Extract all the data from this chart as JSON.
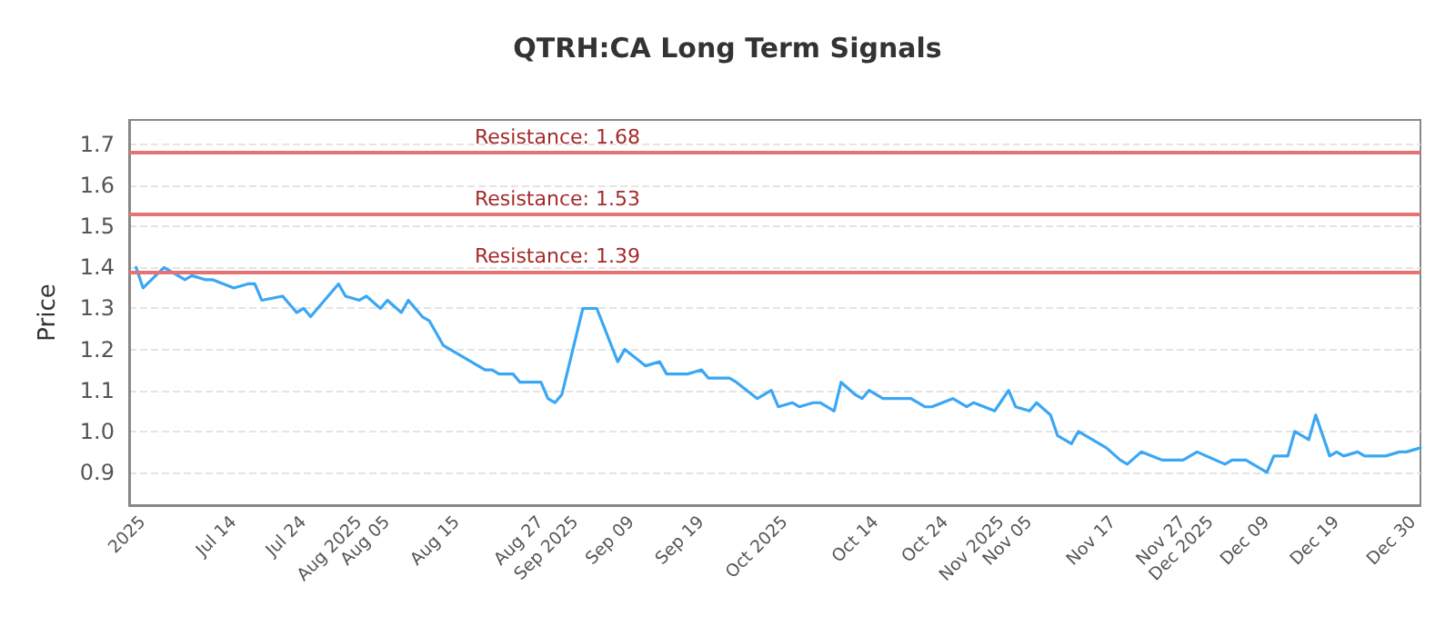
{
  "chart_data": {
    "type": "line",
    "title": "QTRH:CA Long Term Signals",
    "ylabel": "Price",
    "x": [
      "2025-06-30",
      "2025-07-01",
      "2025-07-04",
      "2025-07-05",
      "2025-07-07",
      "2025-07-08",
      "2025-07-10",
      "2025-07-11",
      "2025-07-14",
      "2025-07-16",
      "2025-07-17",
      "2025-07-18",
      "2025-07-21",
      "2025-07-22",
      "2025-07-23",
      "2025-07-24",
      "2025-07-25",
      "2025-07-29",
      "2025-07-30",
      "2025-08-01",
      "2025-08-02",
      "2025-08-04",
      "2025-08-05",
      "2025-08-07",
      "2025-08-08",
      "2025-08-10",
      "2025-08-11",
      "2025-08-13",
      "2025-08-14",
      "2025-08-16",
      "2025-08-17",
      "2025-08-19",
      "2025-08-20",
      "2025-08-21",
      "2025-08-23",
      "2025-08-24",
      "2025-08-26",
      "2025-08-27",
      "2025-08-28",
      "2025-08-29",
      "2025-08-30",
      "2025-09-01",
      "2025-09-02",
      "2025-09-04",
      "2025-09-07",
      "2025-09-08",
      "2025-09-11",
      "2025-09-13",
      "2025-09-14",
      "2025-09-17",
      "2025-09-19",
      "2025-09-20",
      "2025-09-23",
      "2025-09-24",
      "2025-09-27",
      "2025-09-29",
      "2025-09-30",
      "2025-10-02",
      "2025-10-03",
      "2025-10-05",
      "2025-10-06",
      "2025-10-08",
      "2025-10-09",
      "2025-10-11",
      "2025-10-12",
      "2025-10-13",
      "2025-10-15",
      "2025-10-19",
      "2025-10-21",
      "2025-10-22",
      "2025-10-25",
      "2025-10-27",
      "2025-10-28",
      "2025-10-31",
      "2025-11-02",
      "2025-11-03",
      "2025-11-05",
      "2025-11-06",
      "2025-11-08",
      "2025-11-09",
      "2025-11-11",
      "2025-11-12",
      "2025-11-14",
      "2025-11-16",
      "2025-11-18",
      "2025-11-19",
      "2025-11-21",
      "2025-11-24",
      "2025-11-27",
      "2025-11-29",
      "2025-12-03",
      "2025-12-04",
      "2025-12-06",
      "2025-12-07",
      "2025-12-09",
      "2025-12-10",
      "2025-12-12",
      "2025-12-13",
      "2025-12-15",
      "2025-12-16",
      "2025-12-18",
      "2025-12-19",
      "2025-12-20",
      "2025-12-22",
      "2025-12-23",
      "2025-12-26",
      "2025-12-28",
      "2025-12-29",
      "2025-12-31"
    ],
    "series": [
      {
        "color": "#3aa7f5",
        "values": [
          1.4,
          1.35,
          1.4,
          1.39,
          1.37,
          1.38,
          1.37,
          1.37,
          1.35,
          1.36,
          1.36,
          1.32,
          1.33,
          1.31,
          1.29,
          1.3,
          1.28,
          1.36,
          1.33,
          1.32,
          1.33,
          1.3,
          1.32,
          1.29,
          1.32,
          1.28,
          1.27,
          1.21,
          1.2,
          1.18,
          1.17,
          1.15,
          1.15,
          1.14,
          1.14,
          1.12,
          1.12,
          1.12,
          1.08,
          1.07,
          1.09,
          1.23,
          1.3,
          1.3,
          1.17,
          1.2,
          1.16,
          1.17,
          1.14,
          1.14,
          1.15,
          1.13,
          1.13,
          1.12,
          1.08,
          1.1,
          1.06,
          1.07,
          1.06,
          1.07,
          1.07,
          1.05,
          1.12,
          1.09,
          1.08,
          1.1,
          1.08,
          1.08,
          1.06,
          1.06,
          1.08,
          1.06,
          1.07,
          1.05,
          1.1,
          1.06,
          1.05,
          1.07,
          1.04,
          0.99,
          0.97,
          1.0,
          0.98,
          0.96,
          0.93,
          0.92,
          0.95,
          0.93,
          0.93,
          0.95,
          0.92,
          0.93,
          0.93,
          0.92,
          0.9,
          0.94,
          0.94,
          1.0,
          0.98,
          1.04,
          0.94,
          0.95,
          0.94,
          0.95,
          0.94,
          0.94,
          0.95,
          0.95,
          0.96
        ]
      }
    ],
    "xlim": [
      "2025-06-29",
      "2025-12-31"
    ],
    "xticks": [
      {
        "value": "2025-07-01",
        "label": "2025"
      },
      {
        "value": "2025-07-14",
        "label": "Jul 14"
      },
      {
        "value": "2025-07-24",
        "label": "Jul 24"
      },
      {
        "value": "2025-08-01",
        "label": "Aug 2025"
      },
      {
        "value": "2025-08-05",
        "label": "Aug 05"
      },
      {
        "value": "2025-08-15",
        "label": "Aug 15"
      },
      {
        "value": "2025-08-27",
        "label": "Aug 27"
      },
      {
        "value": "2025-09-01",
        "label": "Sep 2025"
      },
      {
        "value": "2025-09-09",
        "label": "Sep 09"
      },
      {
        "value": "2025-09-19",
        "label": "Sep 19"
      },
      {
        "value": "2025-10-01",
        "label": "Oct 2025"
      },
      {
        "value": "2025-10-14",
        "label": "Oct 14"
      },
      {
        "value": "2025-10-24",
        "label": "Oct 24"
      },
      {
        "value": "2025-11-01",
        "label": "Nov 2025"
      },
      {
        "value": "2025-11-05",
        "label": "Nov 05"
      },
      {
        "value": "2025-11-17",
        "label": "Nov 17"
      },
      {
        "value": "2025-11-27",
        "label": "Nov 27"
      },
      {
        "value": "2025-12-01",
        "label": "Dec 2025"
      },
      {
        "value": "2025-12-09",
        "label": "Dec 09"
      },
      {
        "value": "2025-12-19",
        "label": "Dec 19"
      },
      {
        "value": "2025-12-30",
        "label": "Dec 30"
      }
    ],
    "ylim": [
      0.82,
      1.76
    ],
    "yticks": [
      0.9,
      {
        "value": 1,
        "label": "1.0"
      },
      1.1,
      1.2,
      1.3,
      1.4,
      1.5,
      1.6,
      1.7
    ],
    "grid": "y",
    "marker": "none",
    "line_style": "solid",
    "ref_lines": [
      {
        "axis": "y",
        "value": 1.68,
        "label": "Resistance: 1.68",
        "color": "#e57373"
      },
      {
        "axis": "y",
        "value": 1.53,
        "label": "Resistance: 1.53",
        "color": "#e57373"
      },
      {
        "axis": "y",
        "value": 1.39,
        "label": "Resistance: 1.39",
        "color": "#e57373"
      }
    ]
  }
}
